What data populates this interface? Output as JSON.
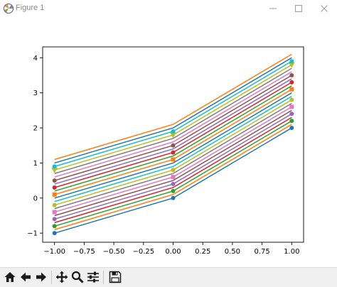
{
  "window": {
    "title": "Figure 1",
    "controls": [
      "minimize-icon",
      "maximize-icon",
      "close-icon"
    ]
  },
  "toolbar": {
    "buttons": [
      {
        "name": "home-button",
        "icon": "home-icon"
      },
      {
        "name": "back-button",
        "icon": "arrow-left-icon"
      },
      {
        "name": "forward-button",
        "icon": "arrow-right-icon"
      },
      {
        "name": "pan-button",
        "icon": "move-icon"
      },
      {
        "name": "zoom-button",
        "icon": "magnifier-icon"
      },
      {
        "name": "configure-subplots-button",
        "icon": "sliders-icon"
      },
      {
        "name": "save-button",
        "icon": "floppy-disk-icon"
      }
    ]
  },
  "chart_data": {
    "type": "line",
    "title": "",
    "xlabel": "",
    "ylabel": "",
    "x": [
      -1.0,
      0.0,
      1.0
    ],
    "xlim": [
      -1.1,
      1.1
    ],
    "ylim": [
      -1.26,
      4.31
    ],
    "xticks": [
      "−1.00",
      "−0.75",
      "−0.50",
      "−0.25",
      "0.00",
      "0.25",
      "0.50",
      "0.75",
      "1.00"
    ],
    "xtick_values": [
      -1.0,
      -0.75,
      -0.5,
      -0.25,
      0.0,
      0.25,
      0.5,
      0.75,
      1.0
    ],
    "yticks": [
      "−1",
      "0",
      "1",
      "2",
      "3",
      "4"
    ],
    "ytick_values": [
      -1,
      0,
      1,
      2,
      3,
      4
    ],
    "grid": false,
    "legend": false,
    "series": [
      {
        "values": [
          -1.0,
          0.0,
          2.0
        ],
        "color": "#1f77b4",
        "marker": "circle"
      },
      {
        "values": [
          -0.9,
          0.1,
          2.1
        ],
        "color": "#ff7f0e",
        "marker": "none"
      },
      {
        "values": [
          -0.8,
          0.2,
          2.2
        ],
        "color": "#2ca02c",
        "marker": "circle"
      },
      {
        "values": [
          -0.7,
          0.3,
          2.3
        ],
        "color": "#d62728",
        "marker": "none"
      },
      {
        "values": [
          -0.6,
          0.4,
          2.4
        ],
        "color": "#9467bd",
        "marker": "circle"
      },
      {
        "values": [
          -0.5,
          0.5,
          2.5
        ],
        "color": "#8c564b",
        "marker": "none"
      },
      {
        "values": [
          -0.4,
          0.6,
          2.6
        ],
        "color": "#e377c2",
        "marker": "square"
      },
      {
        "values": [
          -0.3,
          0.7,
          2.7
        ],
        "color": "#7f7f7f",
        "marker": "none"
      },
      {
        "values": [
          -0.2,
          0.8,
          2.8
        ],
        "color": "#bcbd22",
        "marker": "circle"
      },
      {
        "values": [
          -0.1,
          0.9,
          2.9
        ],
        "color": "#17becf",
        "marker": "none"
      },
      {
        "values": [
          0.0,
          1.0,
          3.0
        ],
        "color": "#1f77b4",
        "marker": "none"
      },
      {
        "values": [
          0.1,
          1.1,
          3.1
        ],
        "color": "#ff7f0e",
        "marker": "square"
      },
      {
        "values": [
          0.2,
          1.2,
          3.2
        ],
        "color": "#2ca02c",
        "marker": "none"
      },
      {
        "values": [
          0.3,
          1.3,
          3.3
        ],
        "color": "#d62728",
        "marker": "circle"
      },
      {
        "values": [
          0.4,
          1.4,
          3.4
        ],
        "color": "#9467bd",
        "marker": "none"
      },
      {
        "values": [
          0.5,
          1.5,
          3.5
        ],
        "color": "#8c564b",
        "marker": "circle"
      },
      {
        "values": [
          0.6,
          1.6,
          3.6
        ],
        "color": "#e377c2",
        "marker": "none"
      },
      {
        "values": [
          0.7,
          1.7,
          3.7
        ],
        "color": "#7f7f7f",
        "marker": "none"
      },
      {
        "values": [
          0.8,
          1.8,
          3.8
        ],
        "color": "#bcbd22",
        "marker": "triangle-down"
      },
      {
        "values": [
          0.9,
          1.9,
          3.9
        ],
        "color": "#17becf",
        "marker": "circle"
      },
      {
        "values": [
          1.0,
          2.0,
          4.0
        ],
        "color": "#1f77b4",
        "marker": "none"
      },
      {
        "values": [
          1.1,
          2.1,
          4.1
        ],
        "color": "#ff7f0e",
        "marker": "none"
      }
    ]
  }
}
